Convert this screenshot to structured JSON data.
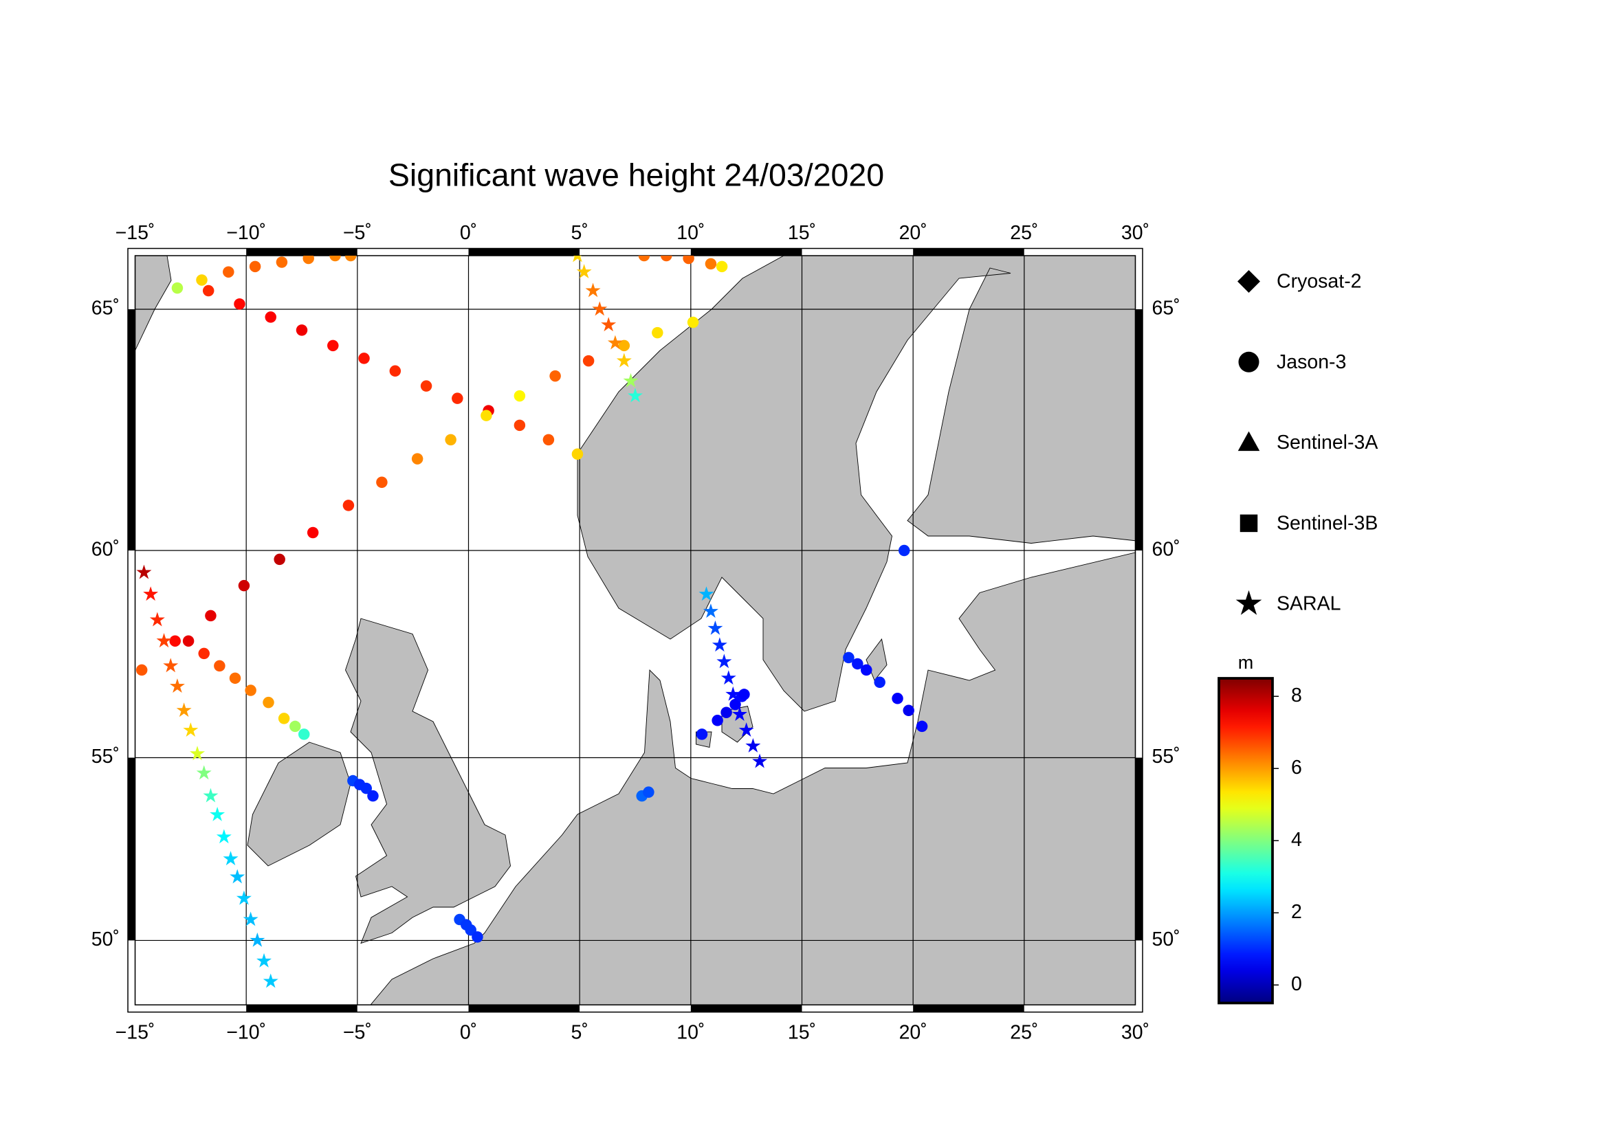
{
  "title": "Significant wave height 24/03/2020",
  "map": {
    "projection": "mercator",
    "grid": true,
    "lonlim": [
      -15,
      30
    ],
    "latlim": [
      48.1,
      66
    ],
    "lonticks": [
      {
        "value": -15,
        "label": "−15˚"
      },
      {
        "value": -10,
        "label": "−10˚"
      },
      {
        "value": -5,
        "label": "−5˚"
      },
      {
        "value": 0,
        "label": "0˚"
      },
      {
        "value": 5,
        "label": "5˚"
      },
      {
        "value": 10,
        "label": "10˚"
      },
      {
        "value": 15,
        "label": "15˚"
      },
      {
        "value": 20,
        "label": "20˚"
      },
      {
        "value": 25,
        "label": "25˚"
      },
      {
        "value": 30,
        "label": "30˚"
      }
    ],
    "latticks": [
      {
        "value": 50,
        "label": "50˚"
      },
      {
        "value": 55,
        "label": "55˚"
      },
      {
        "value": 60,
        "label": "60˚"
      },
      {
        "value": 65,
        "label": "65˚"
      }
    ]
  },
  "colorbar": {
    "label": "m",
    "colormap": "jet",
    "lim": [
      -0.5,
      8.5
    ],
    "ticks": [
      0,
      2,
      4,
      6,
      8
    ]
  },
  "series": [
    {
      "name": "Cryosat-2",
      "marker": "diamond",
      "tracks": []
    },
    {
      "name": "Jason-3",
      "marker": "circle",
      "tracks": [
        {
          "lon": [
            -11.7,
            -10.3,
            -8.9,
            -7.5,
            -6.1,
            -4.7,
            -3.3,
            -1.9,
            -0.5,
            0.9,
            2.3,
            3.6,
            4.9
          ],
          "lat": [
            65.35,
            65.1,
            64.85,
            64.6,
            64.3,
            64.05,
            63.8,
            63.5,
            63.25,
            63.0,
            62.7,
            62.4,
            62.1
          ],
          "values": [
            7.0,
            7.3,
            7.4,
            7.5,
            7.3,
            7.2,
            7.0,
            6.9,
            7.0,
            7.5,
            6.8,
            6.6,
            5.5
          ]
        },
        {
          "lon": [
            -14.7,
            -13.2,
            -11.6,
            -10.1,
            -8.5,
            -7.0,
            -5.4,
            -3.9,
            -2.3,
            -0.8,
            0.8,
            2.3,
            3.9,
            5.4,
            7.0,
            8.5,
            10.1
          ],
          "lat": [
            57.2,
            57.9,
            58.5,
            59.2,
            59.8,
            60.4,
            61.0,
            61.5,
            62.0,
            62.4,
            62.9,
            63.3,
            63.7,
            64.0,
            64.3,
            64.55,
            64.75
          ],
          "values": [
            6.6,
            7.3,
            7.6,
            7.8,
            7.9,
            7.4,
            7.0,
            6.6,
            6.2,
            5.8,
            5.4,
            5.2,
            6.5,
            6.8,
            5.8,
            5.4,
            5.3
          ]
        },
        {
          "lon": [
            -13.1,
            -12.0,
            -10.8,
            -9.6,
            -8.4,
            -7.2,
            -6.0,
            -5.3
          ],
          "lat": [
            65.4,
            65.55,
            65.7,
            65.8,
            65.88,
            65.95,
            66.0,
            66.0
          ],
          "values": [
            4.5,
            5.5,
            6.5,
            6.5,
            6.4,
            6.3,
            6.2,
            6.2
          ]
        },
        {
          "lon": [
            7.9,
            8.9,
            9.9,
            10.9,
            11.4
          ],
          "lat": [
            66.0,
            66.0,
            65.95,
            65.85,
            65.8
          ],
          "values": [
            6.4,
            6.5,
            6.5,
            6.3,
            5.3
          ]
        },
        {
          "lon": [
            -12.6,
            -11.9,
            -11.2,
            -10.5,
            -9.8,
            -9.0,
            -8.3,
            -7.8,
            -7.4
          ],
          "lat": [
            57.9,
            57.6,
            57.3,
            57.0,
            56.7,
            56.4,
            56.0,
            55.8,
            55.6
          ],
          "values": [
            7.6,
            7.0,
            6.6,
            6.4,
            6.3,
            6.0,
            5.5,
            4.3,
            3.3
          ]
        },
        {
          "lon": [
            -5.2,
            -4.9,
            -4.6,
            -4.3
          ],
          "lat": [
            54.4,
            54.3,
            54.2,
            54.0
          ],
          "values": [
            1.2,
            1.0,
            1.0,
            0.9
          ]
        },
        {
          "lon": [
            -0.4,
            -0.1,
            0.1,
            0.4
          ],
          "lat": [
            50.6,
            50.45,
            50.3,
            50.1
          ],
          "values": [
            1.2,
            1.1,
            1.1,
            1.0
          ]
        },
        {
          "lon": [
            7.8,
            8.1
          ],
          "lat": [
            54.0,
            54.1
          ],
          "values": [
            1.5,
            1.3
          ]
        },
        {
          "lon": [
            10.5,
            11.2,
            11.6,
            12.0,
            12.3,
            12.4
          ],
          "lat": [
            55.6,
            55.95,
            56.15,
            56.35,
            56.55,
            56.6
          ],
          "values": [
            0.8,
            0.6,
            0.5,
            0.6,
            0.7,
            0.6
          ]
        },
        {
          "lon": [
            17.1,
            17.5,
            17.9,
            18.5,
            19.3,
            19.8,
            20.4
          ],
          "lat": [
            57.5,
            57.35,
            57.2,
            56.9,
            56.5,
            56.2,
            55.8
          ],
          "values": [
            1.0,
            0.8,
            0.7,
            0.9,
            0.6,
            0.5,
            0.7
          ]
        },
        {
          "lon": [
            19.6
          ],
          "lat": [
            60.0
          ],
          "values": [
            1.0
          ]
        }
      ]
    },
    {
      "name": "Sentinel-3A",
      "marker": "triangle",
      "tracks": []
    },
    {
      "name": "Sentinel-3B",
      "marker": "square",
      "tracks": []
    },
    {
      "name": "SARAL",
      "marker": "star",
      "tracks": [
        {
          "lon": [
            -14.6,
            -14.3,
            -14.0,
            -13.7,
            -13.4,
            -13.1,
            -12.8,
            -12.5,
            -12.2,
            -11.9,
            -11.6,
            -11.3,
            -11.0,
            -10.7,
            -10.4,
            -10.1,
            -9.8,
            -9.5,
            -9.2,
            -8.9
          ],
          "lat": [
            59.5,
            59.0,
            58.4,
            57.9,
            57.3,
            56.8,
            56.2,
            55.7,
            55.1,
            54.6,
            54.0,
            53.5,
            52.9,
            52.3,
            51.8,
            51.2,
            50.6,
            50.0,
            49.4,
            48.8
          ],
          "values": [
            8.0,
            7.2,
            7.0,
            6.8,
            6.6,
            6.4,
            6.0,
            5.5,
            4.8,
            4.0,
            3.4,
            3.0,
            2.8,
            2.5,
            2.3,
            2.4,
            2.3,
            2.2,
            2.4,
            2.4
          ]
        },
        {
          "lon": [
            4.9,
            5.2,
            5.6,
            5.9,
            6.3,
            6.6,
            7.0,
            7.3,
            7.5
          ],
          "lat": [
            66.0,
            65.7,
            65.35,
            65.0,
            64.7,
            64.35,
            64.0,
            63.6,
            63.3
          ],
          "values": [
            5.5,
            5.6,
            6.3,
            6.5,
            6.6,
            6.2,
            5.6,
            4.3,
            3.2
          ]
        },
        {
          "lon": [
            10.7,
            10.9,
            11.1,
            11.3,
            11.5,
            11.7,
            11.9,
            12.2,
            12.5,
            12.8,
            13.1
          ],
          "lat": [
            59.0,
            58.6,
            58.2,
            57.8,
            57.4,
            57.0,
            56.6,
            56.1,
            55.7,
            55.3,
            54.9
          ],
          "values": [
            2.2,
            1.6,
            1.3,
            1.0,
            0.9,
            0.8,
            0.7,
            0.6,
            0.6,
            0.5,
            0.5
          ]
        }
      ]
    }
  ]
}
